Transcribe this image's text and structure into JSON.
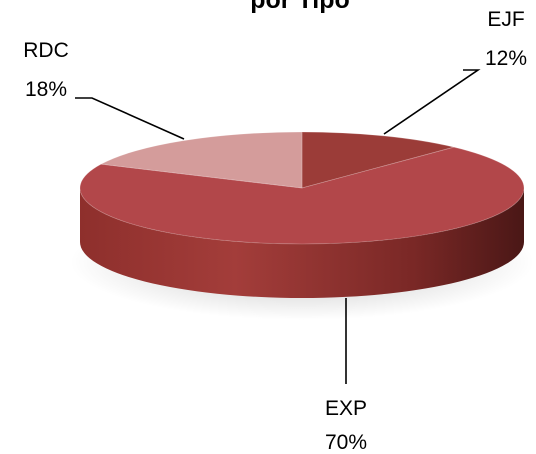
{
  "chart_data": {
    "type": "pie",
    "title": "por Tipo",
    "is_3d": true,
    "slices": [
      {
        "label": "EJF",
        "percent_label": "12%",
        "value": 12,
        "color": "#9b3c38"
      },
      {
        "label": "EXP",
        "percent_label": "70%",
        "value": 70,
        "color": "#b2474a"
      },
      {
        "label": "RDC",
        "percent_label": "18%",
        "value": 18,
        "color": "#d49c9b"
      }
    ]
  }
}
